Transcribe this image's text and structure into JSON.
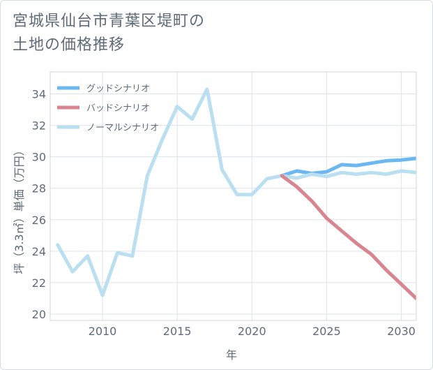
{
  "title_lines": [
    "宮城県仙台市青葉区堤町の",
    "土地の価格推移"
  ],
  "chart_data": {
    "type": "line",
    "title": "宮城県仙台市青葉区堤町の土地の価格推移",
    "xlabel": "年",
    "ylabel": "坪（3.3㎡）単価（万円）",
    "xlim": [
      2006.5,
      2031
    ],
    "ylim": [
      19.6,
      35.4
    ],
    "x_ticks": [
      2010,
      2015,
      2020,
      2025,
      2030
    ],
    "y_ticks": [
      20,
      22,
      24,
      26,
      28,
      30,
      32,
      34
    ],
    "grid": true,
    "legend_position": "top-left",
    "series": [
      {
        "name": "グッドシナリオ",
        "color": "#6ab7f2",
        "x": [
          2022,
          2023,
          2024,
          2025,
          2026,
          2027,
          2028,
          2029,
          2030,
          2031
        ],
        "values": [
          28.8,
          29.1,
          28.95,
          29.05,
          29.5,
          29.45,
          29.6,
          29.75,
          29.8,
          29.9
        ]
      },
      {
        "name": "バッドシナリオ",
        "color": "#d9858f",
        "x": [
          2022,
          2023,
          2024,
          2025,
          2026,
          2027,
          2028,
          2029,
          2030,
          2031
        ],
        "values": [
          28.8,
          28.1,
          27.2,
          26.1,
          25.3,
          24.5,
          23.8,
          22.8,
          21.9,
          21.0
        ]
      },
      {
        "name": "ノーマルシナリオ",
        "color": "#b9dff0",
        "x": [
          2007,
          2008,
          2009,
          2010,
          2011,
          2012,
          2013,
          2014,
          2015,
          2016,
          2017,
          2018,
          2019,
          2020,
          2021,
          2022,
          2023,
          2024,
          2025,
          2026,
          2027,
          2028,
          2029,
          2030,
          2031
        ],
        "values": [
          24.4,
          22.7,
          23.7,
          21.2,
          23.9,
          23.7,
          28.8,
          31.1,
          33.2,
          32.4,
          34.3,
          29.2,
          27.6,
          27.6,
          28.6,
          28.8,
          28.65,
          28.9,
          28.75,
          29.0,
          28.9,
          29.0,
          28.9,
          29.1,
          29.0
        ]
      }
    ]
  }
}
